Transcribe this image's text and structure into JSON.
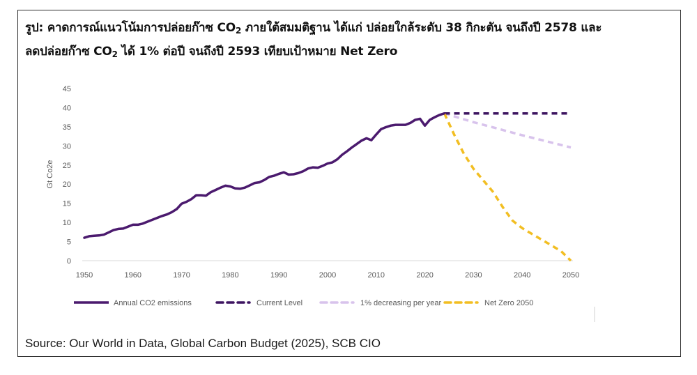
{
  "figure": {
    "title_line1_a": "รูป: คาดการณ์แนวโน้มการปล่อยก๊าซ CO",
    "title_line1_sub": "2",
    "title_line1_b": "  ภายใต้สมมติฐาน ได้แก่ ปล่อยใกล้ระดับ 38 กิกะตัน จนถึงปี 2578 และ",
    "title_line2_a": "ลดปล่อยก๊าซ CO",
    "title_line2_sub": "2",
    "title_line2_b": " ได้ 1% ต่อปี จนถึงปี 2593 เทียบเป้าหมาย Net Zero",
    "source": "Source: Our World in Data, Global Carbon Budget (2025), SCB CIO"
  },
  "chart_data": {
    "type": "line",
    "title": "",
    "xlabel": "",
    "ylabel": "Gt Co2e",
    "xlim": [
      1950,
      2050
    ],
    "ylim": [
      0,
      45
    ],
    "x_ticks": [
      "1950",
      "1960",
      "1970",
      "1980",
      "1990",
      "2000",
      "2010",
      "2020",
      "2030",
      "2040",
      "2050"
    ],
    "y_ticks": [
      "0",
      "5",
      "10",
      "15",
      "20",
      "25",
      "30",
      "35",
      "40",
      "45"
    ],
    "grid": false,
    "legend_position": "bottom",
    "series": [
      {
        "name": "Annual CO2 emissions",
        "color": "#4b1a6e",
        "style": "solid",
        "x": [
          1950,
          1951,
          1952,
          1953,
          1954,
          1955,
          1956,
          1957,
          1958,
          1959,
          1960,
          1961,
          1962,
          1963,
          1964,
          1965,
          1966,
          1967,
          1968,
          1969,
          1970,
          1971,
          1972,
          1973,
          1974,
          1975,
          1976,
          1977,
          1978,
          1979,
          1980,
          1981,
          1982,
          1983,
          1984,
          1985,
          1986,
          1987,
          1988,
          1989,
          1990,
          1991,
          1992,
          1993,
          1994,
          1995,
          1996,
          1997,
          1998,
          1999,
          2000,
          2001,
          2002,
          2003,
          2004,
          2005,
          2006,
          2007,
          2008,
          2009,
          2010,
          2011,
          2012,
          2013,
          2014,
          2015,
          2016,
          2017,
          2018,
          2019,
          2020,
          2021,
          2022,
          2023,
          2024
        ],
        "values": [
          6.0,
          6.4,
          6.5,
          6.6,
          6.8,
          7.4,
          8.0,
          8.3,
          8.4,
          8.9,
          9.4,
          9.4,
          9.7,
          10.2,
          10.7,
          11.2,
          11.7,
          12.1,
          12.7,
          13.5,
          14.9,
          15.4,
          16.1,
          17.1,
          17.1,
          17.0,
          17.9,
          18.5,
          19.1,
          19.6,
          19.4,
          18.9,
          18.8,
          19.1,
          19.7,
          20.3,
          20.5,
          21.1,
          21.9,
          22.2,
          22.7,
          23.1,
          22.5,
          22.6,
          22.9,
          23.4,
          24.1,
          24.4,
          24.3,
          24.8,
          25.4,
          25.7,
          26.5,
          27.7,
          28.6,
          29.6,
          30.5,
          31.4,
          32.0,
          31.5,
          33.0,
          34.4,
          34.9,
          35.3,
          35.5,
          35.5,
          35.5,
          36.0,
          36.8,
          37.1,
          35.3,
          36.8,
          37.5,
          38.1,
          38.5
        ]
      },
      {
        "name": "Current Level",
        "color": "#3d1460",
        "style": "dashed",
        "x": [
          2024,
          2050
        ],
        "values": [
          38.5,
          38.5
        ]
      },
      {
        "name": "1% decreasing per year",
        "color": "#d8c3ec",
        "style": "dashed",
        "x": [
          2024,
          2030,
          2035,
          2040,
          2045,
          2050
        ],
        "values": [
          38.5,
          36.2,
          34.5,
          32.8,
          31.2,
          29.6
        ]
      },
      {
        "name": "Net Zero 2050",
        "color": "#f2be22",
        "style": "dashed",
        "x": [
          2024,
          2026,
          2028,
          2030,
          2032,
          2034,
          2036,
          2038,
          2040,
          2042,
          2044,
          2046,
          2048,
          2050
        ],
        "values": [
          38.5,
          33.0,
          28.0,
          24.0,
          21.0,
          18.0,
          14.0,
          10.5,
          8.5,
          7.0,
          5.5,
          4.0,
          2.5,
          0.0
        ]
      }
    ]
  }
}
